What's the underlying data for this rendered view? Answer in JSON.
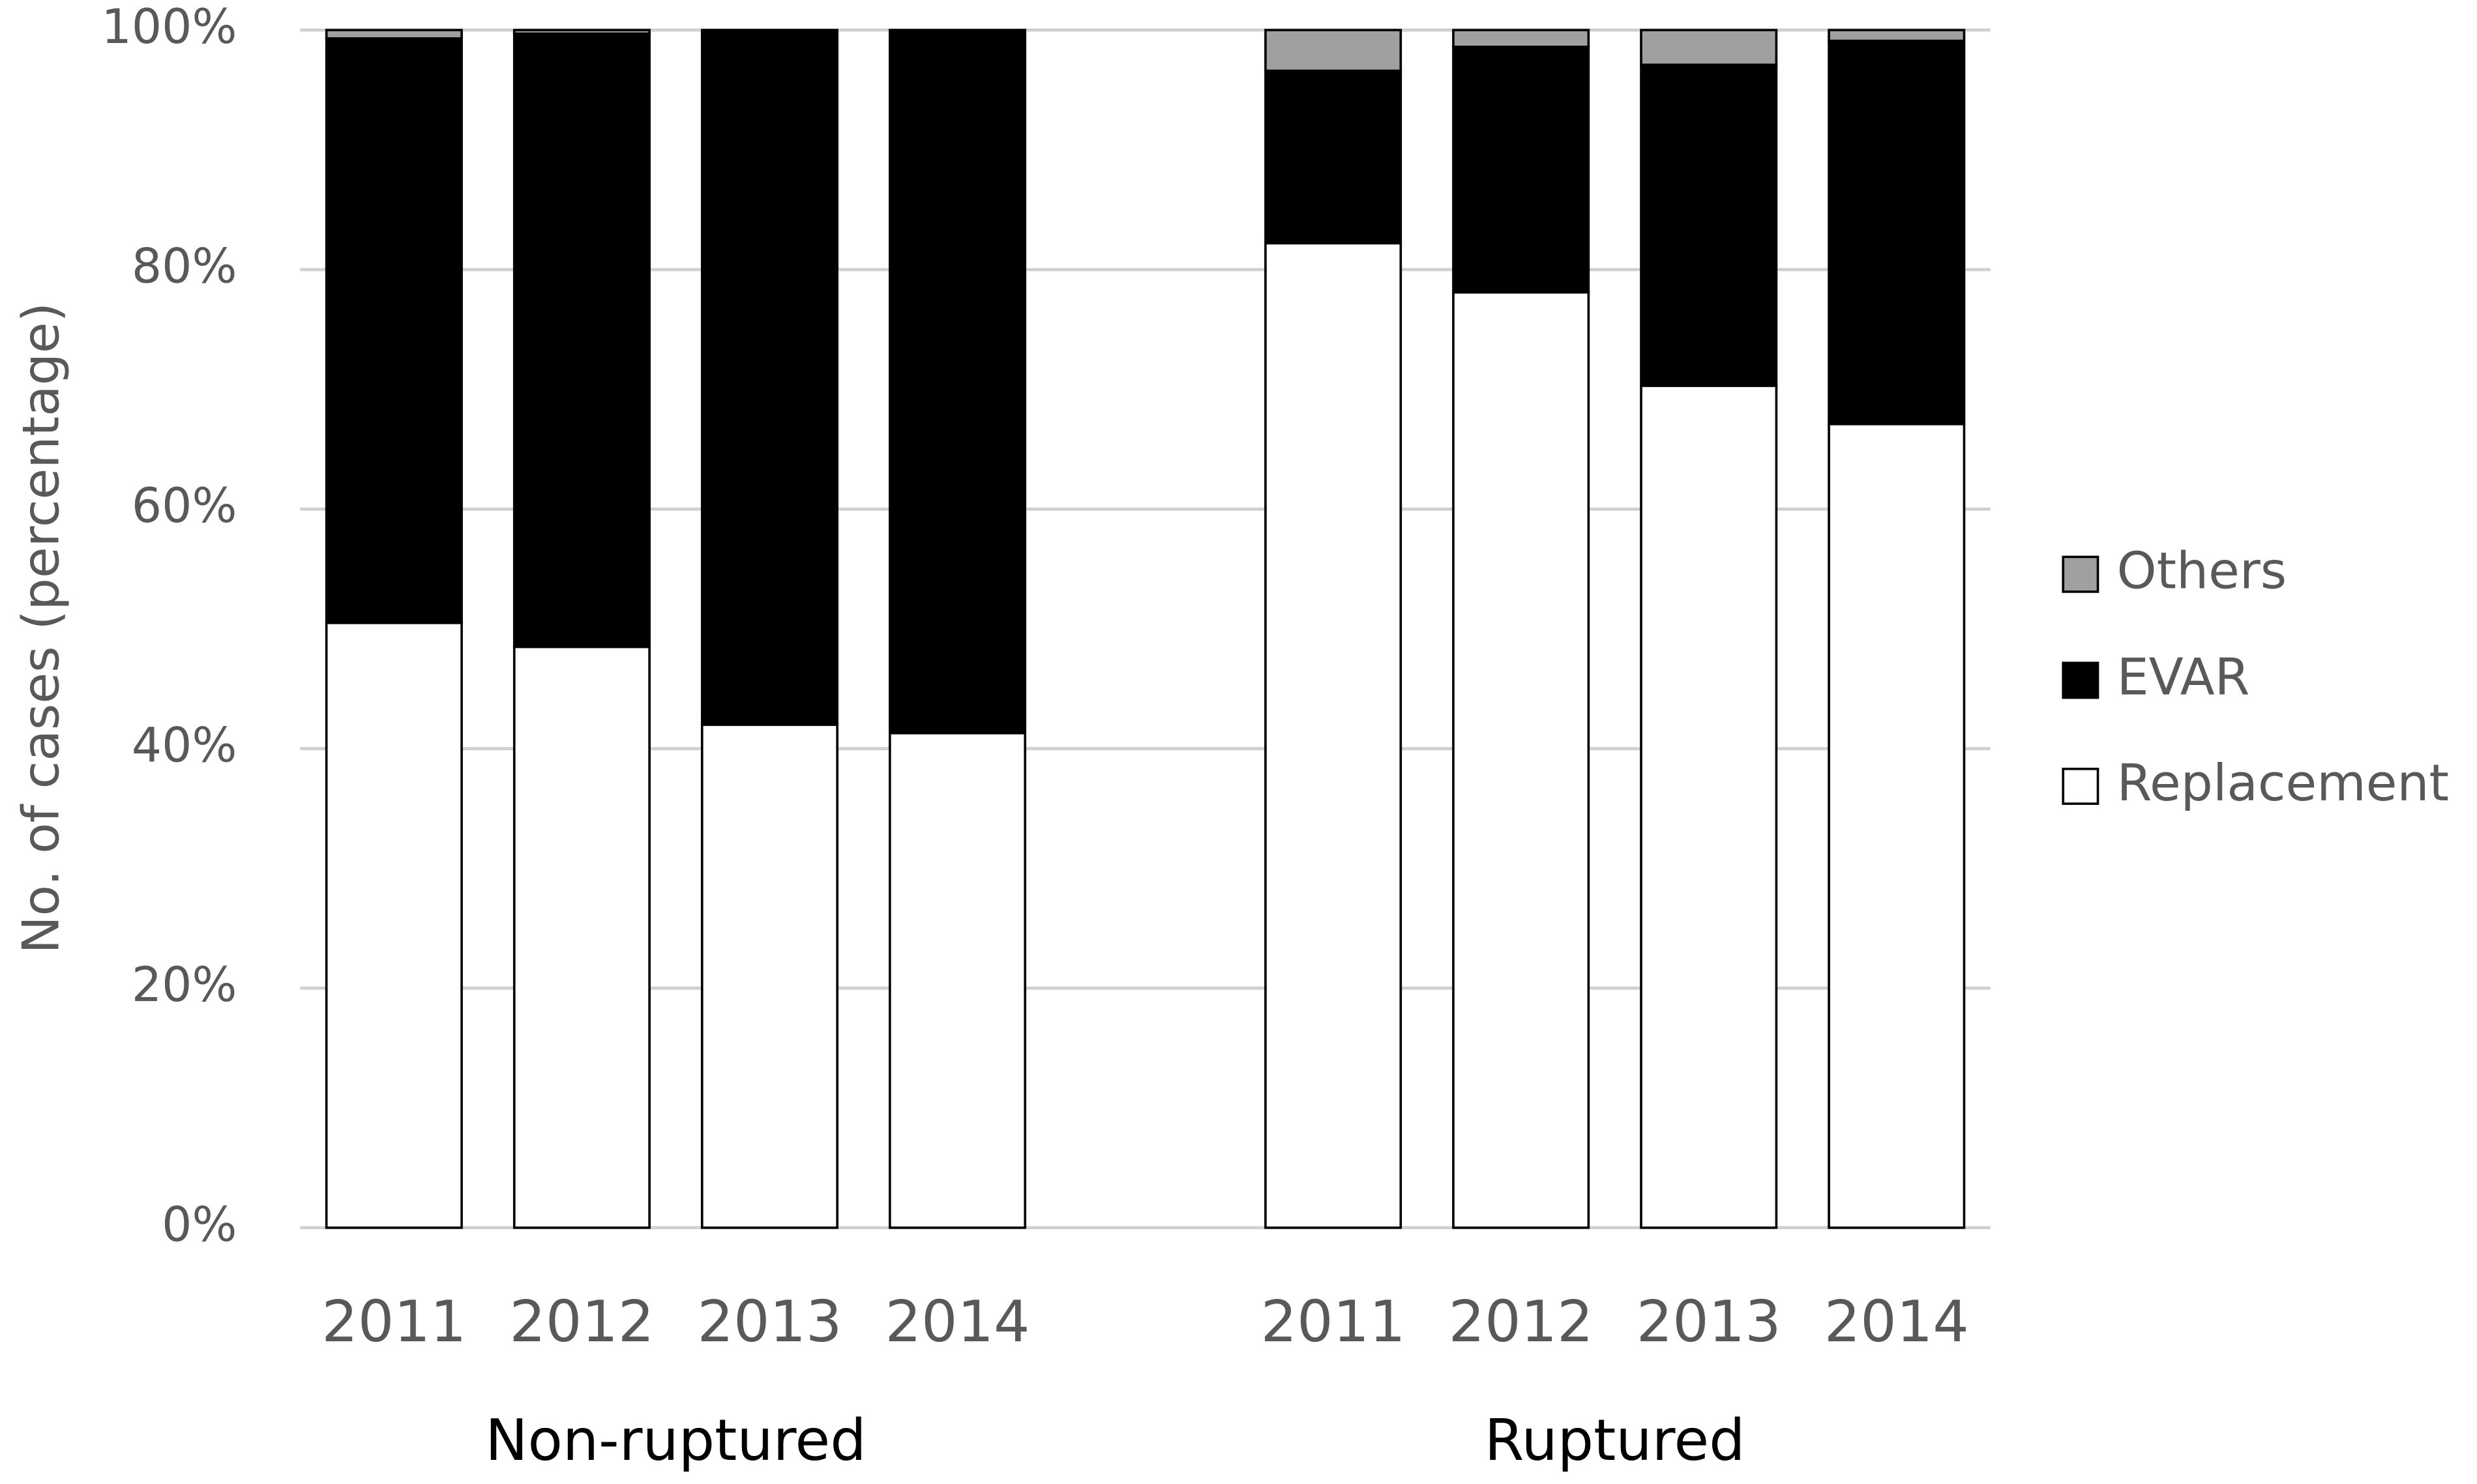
{
  "chart_data": {
    "type": "stacked_bar",
    "y_label": "No. of cases (percentage)",
    "categories": [
      "2011",
      "2012",
      "2013",
      "2014",
      null,
      "2011",
      "2012",
      "2013",
      "2014"
    ],
    "group_labels": [
      "Non-ruptured",
      "Ruptured"
    ],
    "series": [
      {
        "name": "Replacement",
        "color": "#ffffff",
        "values": [
          50.5,
          48.5,
          42,
          41.3,
          null,
          82.2,
          78.1,
          70.3,
          67.1
        ]
      },
      {
        "name": "EVAR",
        "color": "#000000",
        "values": [
          48.8,
          51.2,
          57.8,
          58.7,
          null,
          14.4,
          20.5,
          26.8,
          32
        ]
      },
      {
        "name": "Others",
        "color": "#a0a0a0",
        "values": [
          0.7,
          0.3,
          0.2,
          0,
          null,
          3.4,
          1.4,
          2.9,
          0.9
        ]
      }
    ],
    "ylim": [
      0,
      100
    ],
    "yticks": [
      {
        "value": 0,
        "label": "0%"
      },
      {
        "value": 20,
        "label": "20%"
      },
      {
        "value": 40,
        "label": "40%"
      },
      {
        "value": 60,
        "label": "60%"
      },
      {
        "value": 80,
        "label": "80%"
      },
      {
        "value": 100,
        "label": "100%"
      }
    ],
    "grid": true,
    "legend": "right"
  }
}
